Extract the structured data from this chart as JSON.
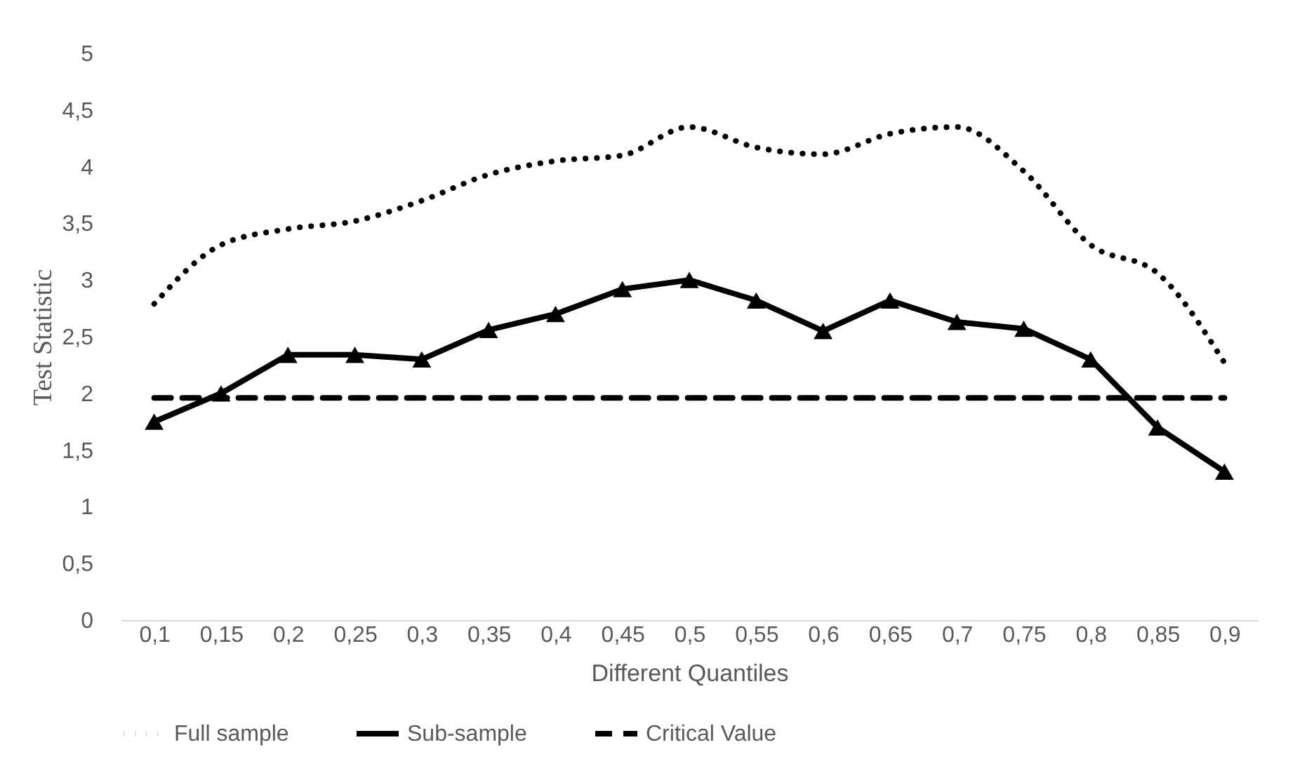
{
  "chart_data": {
    "type": "line",
    "xlabel": "Different Quantiles",
    "ylabel": "Test Statistic",
    "categories": [
      "0,1",
      "0,15",
      "0,2",
      "0,25",
      "0,3",
      "0,35",
      "0,4",
      "0,45",
      "0,5",
      "0,55",
      "0,6",
      "0,65",
      "0,7",
      "0,75",
      "0,8",
      "0,85",
      "0,9"
    ],
    "ylim": [
      0,
      5
    ],
    "yticks": [
      0,
      {
        "value": 0.5,
        "label": "0,5"
      },
      1,
      {
        "value": 1.5,
        "label": "1,5"
      },
      2,
      {
        "value": 2.5,
        "label": "2,5"
      },
      3,
      {
        "value": 3.5,
        "label": "3,5"
      },
      4,
      {
        "value": 4.5,
        "label": "4,5"
      },
      5
    ],
    "grid": false,
    "legend": "bottom",
    "series": [
      {
        "name": "Full sample",
        "color": "#000000",
        "line_style": "dotted",
        "marker": "none",
        "values": [
          2.79,
          3.31,
          3.45,
          3.52,
          3.7,
          3.93,
          4.05,
          4.1,
          4.35,
          4.17,
          4.11,
          4.29,
          4.35,
          3.96,
          3.31,
          3.06,
          2.27
        ]
      },
      {
        "name": "Sub-sample",
        "color": "#000000",
        "line_style": "solid",
        "marker": "triangle",
        "values": [
          1.75,
          2.0,
          2.34,
          2.34,
          2.3,
          2.56,
          2.7,
          2.92,
          3.0,
          2.82,
          2.55,
          2.82,
          2.63,
          2.57,
          2.3,
          1.7,
          1.31
        ]
      },
      {
        "name": "Critical Value",
        "color": "#000000",
        "line_style": "dashed",
        "marker": "none",
        "values": [
          1.96,
          1.96,
          1.96,
          1.96,
          1.96,
          1.96,
          1.96,
          1.96,
          1.96,
          1.96,
          1.96,
          1.96,
          1.96,
          1.96,
          1.96,
          1.96,
          1.96
        ]
      }
    ]
  }
}
